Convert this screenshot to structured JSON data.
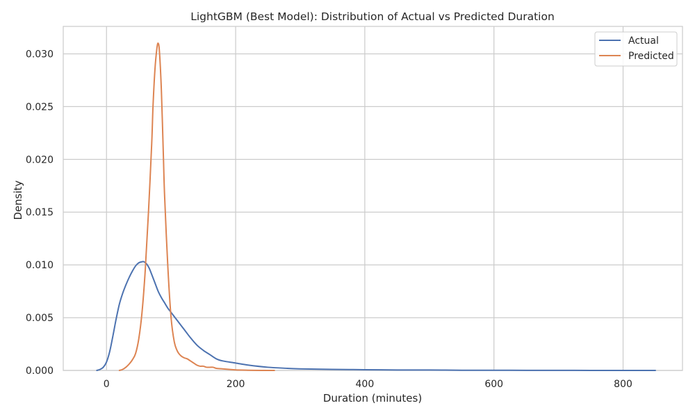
{
  "chart_data": {
    "type": "line",
    "title": "LightGBM (Best Model): Distribution of Actual vs Predicted Duration",
    "xlabel": "Duration (minutes)",
    "ylabel": "Density",
    "xlim": [
      -67,
      892
    ],
    "ylim": [
      0,
      0.0326
    ],
    "xticks": [
      0,
      200,
      400,
      600,
      800
    ],
    "yticks": [
      0.0,
      0.005,
      0.01,
      0.015,
      0.02,
      0.025,
      0.03
    ],
    "ytick_labels": [
      "0.000",
      "0.005",
      "0.010",
      "0.015",
      "0.020",
      "0.025",
      "0.030"
    ],
    "grid": true,
    "legend_position": "top-right",
    "series": [
      {
        "name": "Actual",
        "color": "#4c72b0",
        "x": [
          -15,
          -10,
          -5,
          0,
          5,
          10,
          15,
          20,
          25,
          30,
          35,
          40,
          45,
          50,
          55,
          58,
          62,
          66,
          70,
          75,
          80,
          85,
          90,
          95,
          100,
          110,
          120,
          130,
          140,
          150,
          160,
          170,
          180,
          200,
          220,
          250,
          280,
          300,
          350,
          400,
          450,
          500,
          550,
          600,
          650,
          700,
          750,
          800,
          850
        ],
        "y": [
          0.0,
          0.0001,
          0.0003,
          0.0008,
          0.0018,
          0.0033,
          0.0049,
          0.0063,
          0.0073,
          0.0081,
          0.0088,
          0.0094,
          0.0099,
          0.0102,
          0.0103,
          0.0103,
          0.0101,
          0.0097,
          0.0091,
          0.0083,
          0.0075,
          0.0069,
          0.0064,
          0.0059,
          0.0055,
          0.0047,
          0.0039,
          0.0031,
          0.0024,
          0.0019,
          0.0015,
          0.0011,
          0.0009,
          0.0007,
          0.0005,
          0.0003,
          0.0002,
          0.00015,
          0.0001,
          7e-05,
          4e-05,
          4e-05,
          2e-05,
          2e-05,
          1e-05,
          1e-05,
          0.0,
          0.0,
          0.0
        ]
      },
      {
        "name": "Predicted",
        "color": "#dd8452",
        "x": [
          20,
          25,
          30,
          35,
          40,
          45,
          50,
          55,
          60,
          65,
          70,
          72,
          75,
          78,
          80,
          82,
          85,
          88,
          90,
          95,
          100,
          105,
          110,
          115,
          120,
          125,
          130,
          135,
          140,
          145,
          150,
          155,
          160,
          165,
          170,
          180,
          190,
          200,
          220,
          240,
          260
        ],
        "y": [
          0.0,
          0.0001,
          0.0003,
          0.0006,
          0.001,
          0.0016,
          0.003,
          0.0055,
          0.0095,
          0.015,
          0.0215,
          0.025,
          0.0285,
          0.0305,
          0.031,
          0.0302,
          0.0265,
          0.0205,
          0.0165,
          0.0098,
          0.005,
          0.0027,
          0.0018,
          0.0014,
          0.0012,
          0.0011,
          0.0009,
          0.0007,
          0.0005,
          0.0004,
          0.0004,
          0.0003,
          0.0003,
          0.0003,
          0.0002,
          0.00015,
          0.0001,
          5e-05,
          2e-05,
          0.0,
          0.0
        ]
      }
    ]
  }
}
